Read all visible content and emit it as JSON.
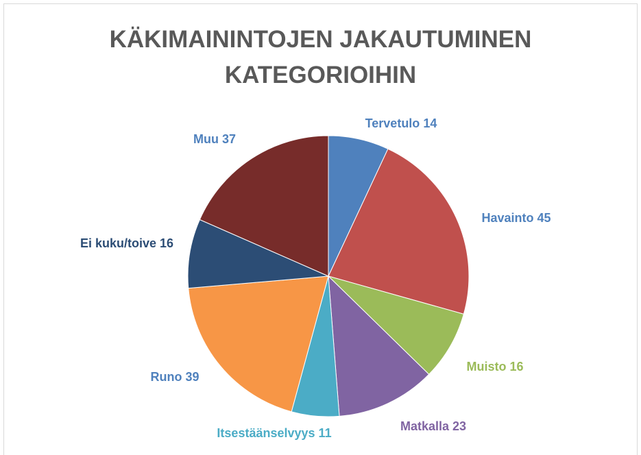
{
  "chart_data": {
    "type": "pie",
    "title": "KÄKIMAININTOJEN JAKAUTUMINEN KATEGORIOIHIN",
    "categories": [
      "Tervetulo",
      "Havainto",
      "Muisto",
      "Matkalla",
      "Itsestäänselvyys",
      "Runo",
      "Ei kuku/toive",
      "Muu"
    ],
    "values": [
      14,
      45,
      16,
      23,
      11,
      39,
      16,
      37
    ],
    "colors": [
      "#4f81bd",
      "#c0504d",
      "#9bbb59",
      "#8064a2",
      "#4bacc6",
      "#f79646",
      "#2c4d75",
      "#772c2a"
    ],
    "label_colors": [
      "#4f81bd",
      "#4f81bd",
      "#9bbb59",
      "#8064a2",
      "#4bacc6",
      "#4f81bd",
      "#2c4d75",
      "#4f81bd"
    ]
  }
}
